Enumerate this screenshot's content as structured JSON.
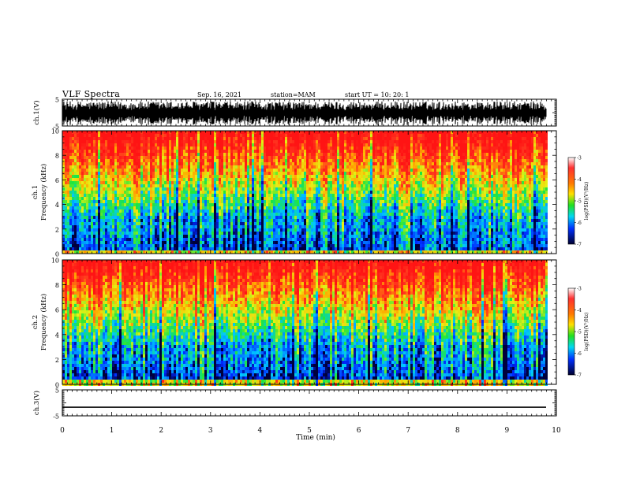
{
  "header": {
    "title": "VLF Spectra",
    "date": "Sep. 16, 2021",
    "station": "station=MAM",
    "start": "start UT =  10: 20: 1"
  },
  "chart_data": [
    {
      "type": "line",
      "panel": "ch1-waveform",
      "ylabel": "ch.1(V)",
      "ylim": [
        -5,
        5
      ],
      "yticks": [
        "5",
        "-5"
      ],
      "xlim": [
        0,
        10
      ],
      "description_values": "dense oscillating waveform spanning approximately -4 to 4 V over the full time range"
    },
    {
      "type": "heatmap",
      "panel": "ch1-spectrogram",
      "ylabel_line1": "ch.1",
      "ylabel_line2": "Frequency (kHz)",
      "ylim": [
        0,
        10
      ],
      "yticks": [
        "0",
        "2",
        "4",
        "6",
        "8",
        "10"
      ],
      "xlim": [
        0,
        10
      ],
      "colorbar": {
        "label": "log(PSD)(V²/Hz)",
        "range": [
          -7,
          -3
        ],
        "ticks": [
          "-3",
          "-4",
          "-5",
          "-6",
          "-7"
        ]
      }
    },
    {
      "type": "heatmap",
      "panel": "ch2-spectrogram",
      "ylabel_line1": "ch.2",
      "ylabel_line2": "Frequency (kHz)",
      "ylim": [
        0,
        10
      ],
      "yticks": [
        "0",
        "2",
        "4",
        "6",
        "8",
        "10"
      ],
      "xlim": [
        0,
        10
      ],
      "colorbar": {
        "label": "log(PSD)(V²/Hz)",
        "range": [
          -7,
          -3
        ],
        "ticks": [
          "-3",
          "-4",
          "-5",
          "-6",
          "-7"
        ]
      }
    },
    {
      "type": "line",
      "panel": "ch3-waveform",
      "ylabel": "ch.3(V)",
      "ylim": [
        -5,
        5
      ],
      "yticks": [
        "5",
        "-5"
      ],
      "xlim": [
        0,
        10
      ],
      "values_flat": -1.7
    }
  ],
  "x_axis": {
    "label": "Time (min)",
    "ticks": [
      "0",
      "1",
      "2",
      "3",
      "4",
      "5",
      "6",
      "7",
      "8",
      "9",
      "10"
    ]
  }
}
